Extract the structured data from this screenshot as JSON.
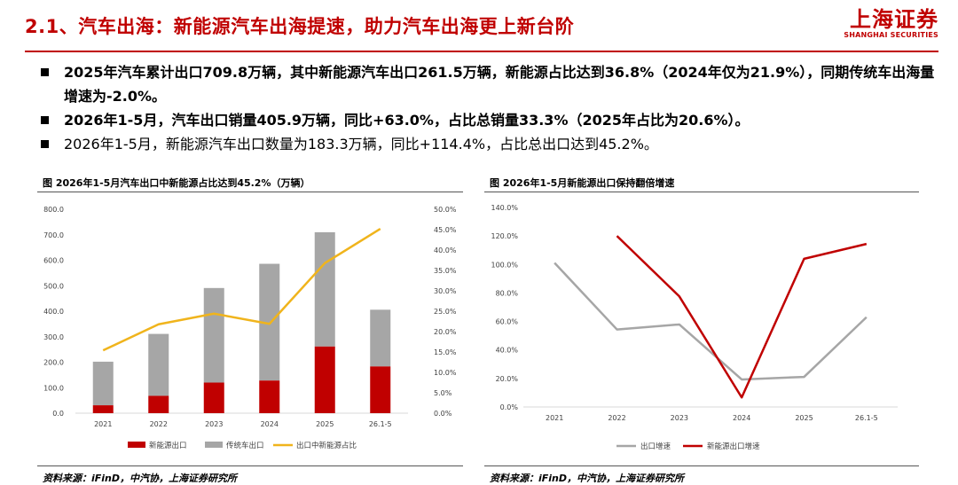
{
  "header": {
    "title": "2.1、汽车出海：新能源汽车出海提速，助力汽车出海更上新台阶",
    "brand_cn": "上海证券",
    "brand_en": "SHANGHAI SECURITIES"
  },
  "bullets": [
    "2025年汽车累计出口709.8万辆，其中新能源汽车出口261.5万辆，新能源占比达到36.8%（2024年仅为21.9%），同期传统车出海量增速为-2.0%。",
    "2026年1-5月，汽车出口销量405.9万辆，同比+63.0%，占比总销量33.3%（2025年占比为20.6%）。",
    "2026年1-5月，新能源汽车出口数量为183.3万辆，同比+114.4%，占比总出口达到45.2%。"
  ],
  "left_panel": {
    "title": "图  2026年1-5月汽车出口中新能源占比达到45.2%（万辆）",
    "source": "资料来源：iFinD，中汽协，上海证券研究所"
  },
  "right_panel": {
    "title": "图  2026年1-5月新能源出口保持翻倍增速",
    "source": "资料来源：iFinD，中汽协，上海证券研究所"
  },
  "colors": {
    "accent": "#c00000",
    "nev": "#c00000",
    "traditional": "#a6a6a6",
    "share": "#f0b41c",
    "growth": "#a6a6a6"
  },
  "chart_data": [
    {
      "type": "bar",
      "categories": [
        "2021",
        "2022",
        "2023",
        "2024",
        "2025",
        "26.1-5"
      ],
      "stacked": true,
      "series": [
        {
          "name": "新能源出口",
          "values": [
            31,
            68,
            120,
            128,
            261.5,
            183.3
          ],
          "axis": "left"
        },
        {
          "name": "传统车出口",
          "values": [
            171,
            243,
            371,
            458,
            448.3,
            222.6
          ],
          "axis": "left"
        },
        {
          "name": "出口中新能源占比",
          "type": "line",
          "values": [
            15.4,
            21.8,
            24.4,
            21.9,
            36.8,
            45.2
          ],
          "axis": "right"
        }
      ],
      "yticks": [
        "0.0",
        "100.0",
        "200.0",
        "300.0",
        "400.0",
        "500.0",
        "600.0",
        "700.0",
        "800.0"
      ],
      "y2ticks": [
        "0.0%",
        "5.0%",
        "10.0%",
        "15.0%",
        "20.0%",
        "25.0%",
        "30.0%",
        "35.0%",
        "40.0%",
        "45.0%",
        "50.0%"
      ],
      "ylim": [
        0,
        800
      ],
      "y2lim": [
        0,
        50
      ],
      "legend": "bottom",
      "grid": false
    },
    {
      "type": "line",
      "categories": [
        "2021",
        "2022",
        "2023",
        "2024",
        "2025",
        "26.1-5"
      ],
      "series": [
        {
          "name": "出口增速",
          "values": [
            101.1,
            54.4,
            57.9,
            19.3,
            21.1,
            63.0
          ]
        },
        {
          "name": "新能源出口增速",
          "values": [
            null,
            120.0,
            77.6,
            6.7,
            104.0,
            114.4
          ]
        }
      ],
      "yticks": [
        "0.0%",
        "20.0%",
        "40.0%",
        "60.0%",
        "80.0%",
        "100.0%",
        "120.0%",
        "140.0%"
      ],
      "ylim": [
        0,
        140
      ],
      "legend": "bottom",
      "grid": false
    }
  ]
}
